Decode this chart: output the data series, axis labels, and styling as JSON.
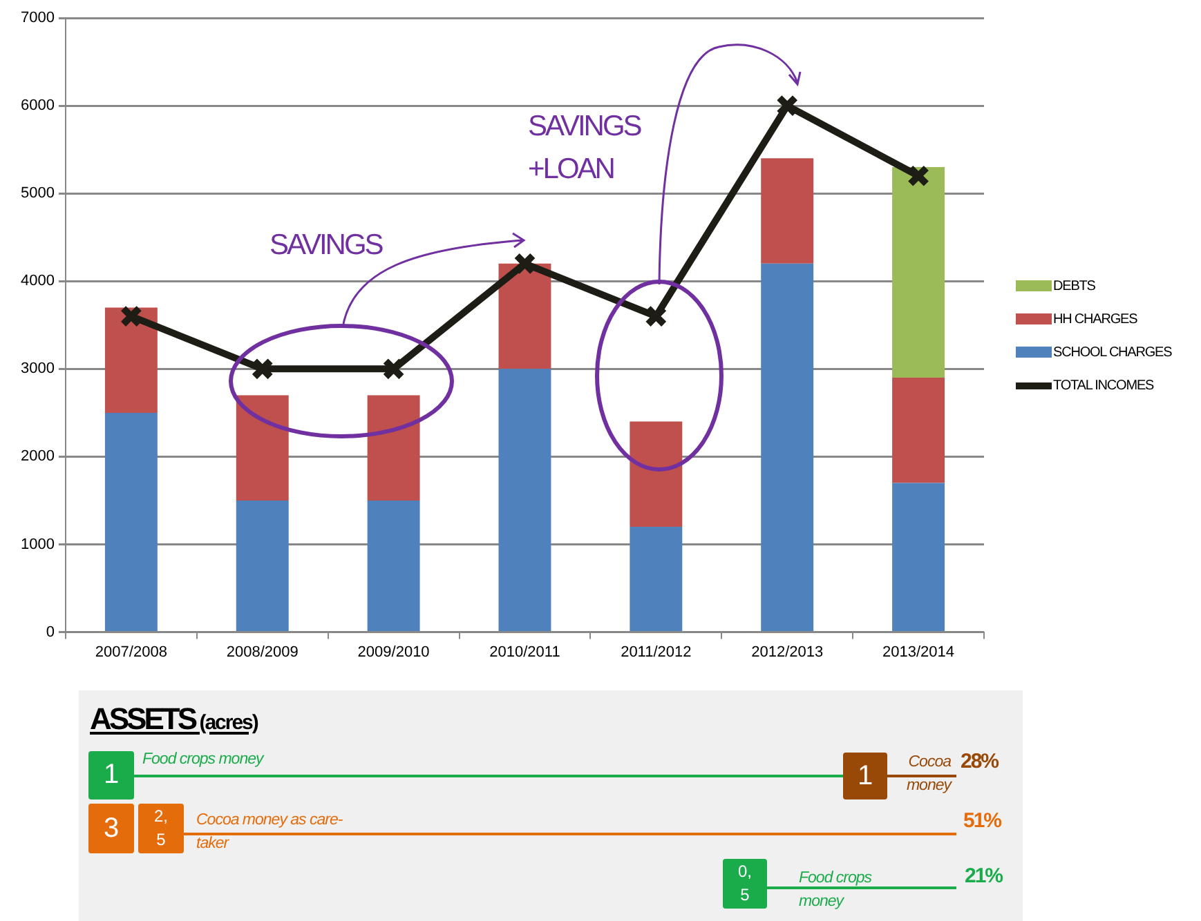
{
  "chart_data": {
    "type": "bar",
    "stacked": true,
    "categories": [
      "2007/2008",
      "2008/2009",
      "2009/2010",
      "2010/2011",
      "2011/2012",
      "2012/2013",
      "2013/2014"
    ],
    "series": [
      {
        "name": "SCHOOL CHARGES",
        "color": "#4f81bd",
        "values": [
          2500,
          1500,
          1500,
          3000,
          1200,
          4200,
          1700
        ]
      },
      {
        "name": "HH CHARGES",
        "color": "#c0504d",
        "values": [
          1200,
          1200,
          1200,
          1200,
          1200,
          1200,
          1200
        ]
      },
      {
        "name": "DEBTS",
        "color": "#9bbb59",
        "values": [
          null,
          null,
          null,
          null,
          null,
          null,
          2400
        ]
      },
      {
        "name": "TOTAL INCOMES",
        "type": "line",
        "color": "#1d1d16",
        "values": [
          3600,
          3000,
          3000,
          4200,
          3600,
          6000,
          5200
        ]
      }
    ],
    "ylim": [
      0,
      7000
    ],
    "yticks": [
      0,
      1000,
      2000,
      3000,
      4000,
      5000,
      6000,
      7000
    ],
    "grid": "y",
    "legend": "right",
    "marker": "cross",
    "line_style": "solid",
    "annotations": [
      "SAVINGS",
      "SAVINGS +LOAN",
      "ASSETS",
      "(acres)",
      "1",
      "Food crops money",
      "1",
      "Cocoa money",
      "28%",
      "3",
      "2,5",
      "Cocoa money as care-taker",
      "51%",
      "0,5",
      "Food crops money",
      "21%"
    ]
  }
}
